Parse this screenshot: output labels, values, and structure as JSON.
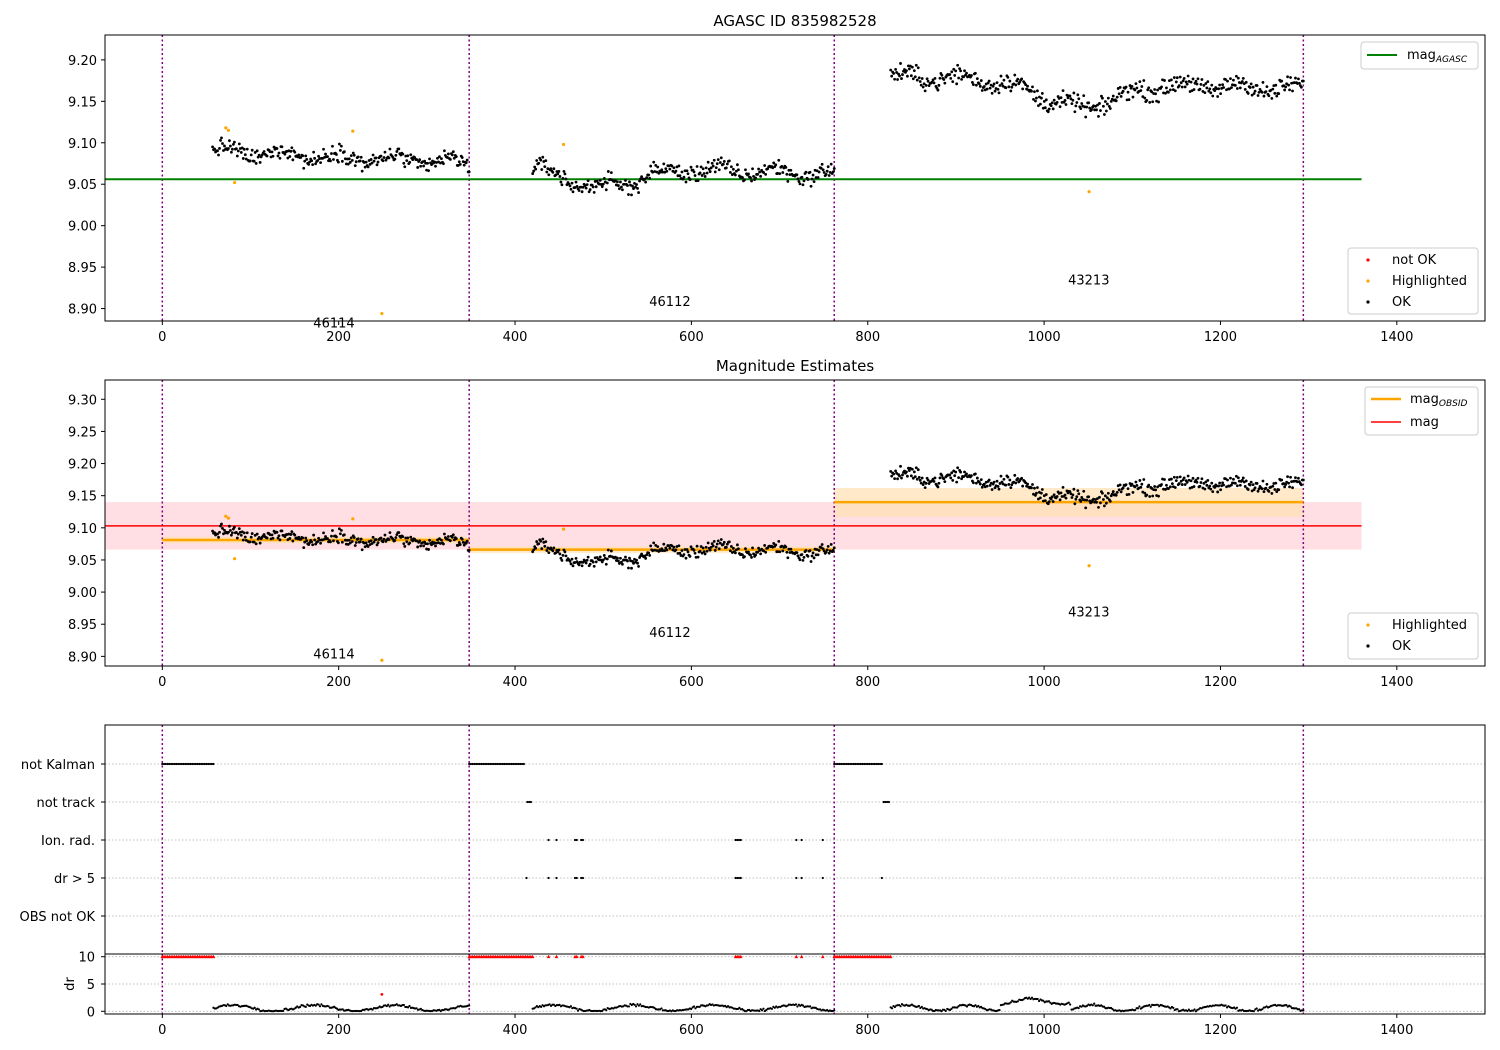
{
  "figure": {
    "top_title": "AGASC ID 835982528",
    "middle_title": "Magnitude Estimates"
  },
  "colors": {
    "ok": "#000000",
    "highlighted": "#ffa500",
    "not_ok": "#ff0000",
    "agasc_line": "#008000",
    "mag_line": "#ff0000",
    "mag_band": "#ffc0c8",
    "obsid_line": "#ffa500",
    "obsid_band": "#ffe0b0",
    "obsid_boundary": "#800080"
  },
  "chart_data": [
    {
      "type": "scatter",
      "title": "AGASC ID 835982528",
      "xlim": [
        -65,
        1500
      ],
      "ylim": [
        8.885,
        9.23
      ],
      "xticks": [
        0,
        200,
        400,
        600,
        800,
        1000,
        1200,
        1400
      ],
      "yticks": [
        8.9,
        8.95,
        9.0,
        9.05,
        9.1,
        9.15,
        9.2
      ],
      "obsid_boundaries": [
        0,
        348,
        762,
        1294
      ],
      "obsids": [
        {
          "label": "46114",
          "x": 172,
          "y": 8.877
        },
        {
          "label": "46112",
          "x": 553,
          "y": 8.903
        },
        {
          "label": "43213",
          "x": 1028,
          "y": 8.929
        }
      ],
      "mag_agasc": {
        "value": 9.056,
        "x_range": [
          -65,
          1360
        ]
      },
      "legend_lines": [
        "mag_{AGASC}"
      ],
      "legend_points": [
        "not OK",
        "Highlighted",
        "OK"
      ],
      "segments": [
        {
          "x_start": 57,
          "x_end": 348,
          "y_start": 9.09,
          "y_end": 9.075,
          "spread": 0.011,
          "n": 260
        },
        {
          "x_start": 420,
          "x_end": 762,
          "y_start": 9.075,
          "y_end": 9.062,
          "spread": 0.011,
          "n": 300,
          "dip": {
            "x": 495,
            "depth": 0.025
          }
        },
        {
          "x_start": 826,
          "x_end": 1294,
          "y_start": 9.18,
          "y_end": 9.165,
          "spread": 0.012,
          "n": 420,
          "dip": {
            "x": 1040,
            "depth": 0.03
          }
        }
      ],
      "highlighted_points": [
        [
          72,
          9.118
        ],
        [
          75,
          9.115
        ],
        [
          82,
          9.052
        ],
        [
          216,
          9.114
        ],
        [
          249,
          8.894
        ],
        [
          455,
          9.098
        ],
        [
          1051,
          9.041
        ]
      ],
      "not_ok_points": []
    },
    {
      "type": "scatter",
      "title": "Magnitude Estimates",
      "xlim": [
        -65,
        1500
      ],
      "ylim": [
        8.885,
        9.33
      ],
      "xticks": [
        0,
        200,
        400,
        600,
        800,
        1000,
        1200,
        1400
      ],
      "yticks": [
        8.9,
        8.95,
        9.0,
        9.05,
        9.1,
        9.15,
        9.2,
        9.25,
        9.3
      ],
      "obsid_boundaries": [
        0,
        348,
        762,
        1294
      ],
      "obsids": [
        {
          "label": "46114",
          "x": 172,
          "y": 8.897
        },
        {
          "label": "46112",
          "x": 553,
          "y": 8.93
        },
        {
          "label": "43213",
          "x": 1028,
          "y": 8.962
        }
      ],
      "mag": {
        "value": 9.103,
        "band": [
          9.066,
          9.14
        ],
        "x_range": [
          -65,
          1360
        ]
      },
      "mag_obsid": [
        {
          "x_range": [
            0,
            348
          ],
          "value": 9.081,
          "band": [
            9.076,
            9.086
          ]
        },
        {
          "x_range": [
            348,
            762
          ],
          "value": 9.066,
          "band": [
            9.061,
            9.071
          ]
        },
        {
          "x_range": [
            762,
            1294
          ],
          "value": 9.14,
          "band": [
            9.117,
            9.162
          ]
        }
      ],
      "legend_lines": [
        "mag_{OBSID}",
        "mag"
      ],
      "legend_points": [
        "Highlighted",
        "OK"
      ]
    },
    {
      "type": "scatter",
      "title": "",
      "xlim": [
        -65,
        1500
      ],
      "xticks": [
        0,
        200,
        400,
        600,
        800,
        1000,
        1200,
        1400
      ],
      "flags": [
        "not Kalman",
        "not track",
        "Ion. rad.",
        "dr > 5",
        "OBS not OK"
      ],
      "obsid_boundaries": [
        0,
        348,
        762,
        1294
      ],
      "flag_ranges": {
        "not Kalman": [
          [
            0,
            58
          ],
          [
            348,
            410
          ],
          [
            762,
            816
          ]
        ],
        "not track": [
          [
            414,
            418
          ],
          [
            818,
            824
          ]
        ],
        "Ion. rad.": [
          [
            438,
            438
          ],
          [
            447,
            447
          ],
          [
            468,
            470
          ],
          [
            475,
            478
          ],
          [
            650,
            656
          ],
          [
            719,
            719
          ],
          [
            725,
            725
          ],
          [
            749,
            749
          ]
        ],
        "dr > 5": [
          [
            413,
            413
          ],
          [
            438,
            438
          ],
          [
            447,
            447
          ],
          [
            468,
            470
          ],
          [
            475,
            478
          ],
          [
            650,
            656
          ],
          [
            719,
            719
          ],
          [
            725,
            725
          ],
          [
            749,
            749
          ],
          [
            816,
            816
          ]
        ],
        "OBS not OK": []
      }
    },
    {
      "type": "scatter",
      "title": "",
      "ylabel": "dr",
      "xlim": [
        -65,
        1500
      ],
      "ylim": [
        -0.5,
        10.5
      ],
      "xticks": [
        0,
        200,
        400,
        600,
        800,
        1000,
        1200,
        1400
      ],
      "yticks": [
        0,
        5,
        10
      ],
      "obsid_boundaries": [
        0,
        348,
        762,
        1294
      ],
      "dr_clipped_ranges": [
        [
          0,
          58
        ],
        [
          348,
          420
        ],
        [
          438,
          438
        ],
        [
          447,
          447
        ],
        [
          468,
          470
        ],
        [
          475,
          478
        ],
        [
          650,
          656
        ],
        [
          719,
          719
        ],
        [
          725,
          725
        ],
        [
          749,
          749
        ],
        [
          762,
          826
        ]
      ],
      "dr_segments": [
        [
          58,
          348
        ],
        [
          420,
          762
        ],
        [
          826,
          1294
        ]
      ],
      "dr_high_point": [
        249,
        3.1
      ]
    }
  ]
}
